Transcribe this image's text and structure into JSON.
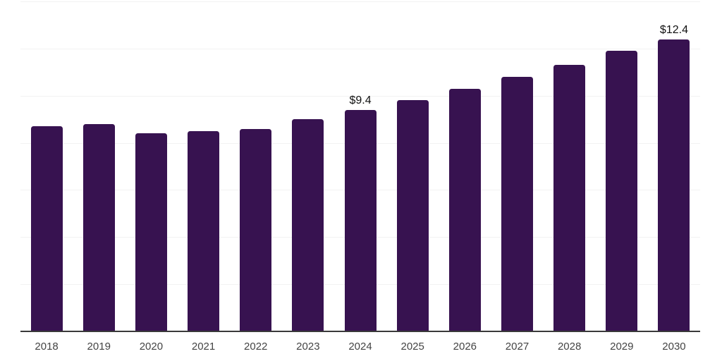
{
  "chart_data": {
    "type": "bar",
    "title": "",
    "xlabel": "",
    "ylabel": "",
    "categories": [
      "2018",
      "2019",
      "2020",
      "2021",
      "2022",
      "2023",
      "2024",
      "2025",
      "2026",
      "2027",
      "2028",
      "2029",
      "2030"
    ],
    "values": [
      8.7,
      8.8,
      8.4,
      8.5,
      8.6,
      9.0,
      9.4,
      9.8,
      10.3,
      10.8,
      11.3,
      11.9,
      12.4
    ],
    "point_labels": [
      null,
      null,
      null,
      null,
      null,
      null,
      "$9.4",
      null,
      null,
      null,
      null,
      null,
      "$12.4"
    ],
    "ylim": [
      0,
      14
    ],
    "grid_step": 2,
    "grid": true,
    "legend": false,
    "colors": {
      "bar-color": "#371250",
      "grid-color": "#f2f2f2",
      "axis-color": "#3a3a3a",
      "tick-color": "#444444",
      "value-label-color": "#111111"
    }
  }
}
